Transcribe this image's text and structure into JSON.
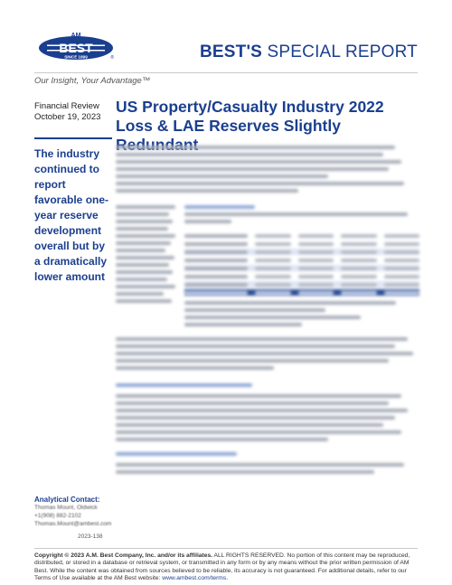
{
  "header": {
    "logo_am": "AM",
    "logo_best": "BEST",
    "logo_since": "SINCE 1899",
    "logo_reg": "®",
    "report_bold": "BEST'S",
    "report_rest": " SPECIAL REPORT"
  },
  "tagline": "Our Insight, Your Advantage™",
  "sidebar": {
    "pub_type": "Financial Review",
    "pub_date": "October 19, 2023",
    "pull_quote": "The industry continued to report favorable one-year reserve development overall but by a dramatically lower amount"
  },
  "title": "US Property/Casualty Industry 2022 Loss & LAE Reserves Slightly Redundant",
  "analytical_contact": {
    "heading": "Analytical Contact:",
    "name": "Thomas Mount, Oldwick",
    "phone": "+1(908) 882-2102",
    "email": "Thomas.Mount@ambest.com"
  },
  "report_number": "2023-138",
  "footer": {
    "copyright": "Copyright © 2023 A.M. Best Company, Inc. and/or its affiliates.",
    "text": " ALL RIGHTS RESERVED. No portion of this content may be reproduced, distributed, or stored in a database or retrieval system, or transmitted in any form or by any means without the prior written permission of AM Best. While the content was obtained from sources believed to be reliable, its accuracy is not guaranteed. For additional details, refer to our Terms of Use available at the AM Best website: ",
    "link": "www.ambest.com/terms",
    "end": "."
  },
  "colors": {
    "brand": "#1b3f8f",
    "accent": "#2e5bb0"
  }
}
